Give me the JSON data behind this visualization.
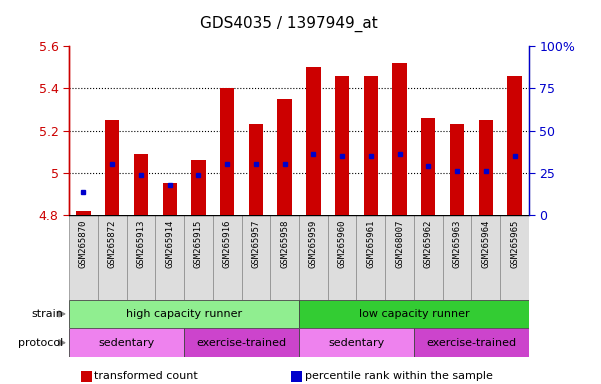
{
  "title": "GDS4035 / 1397949_at",
  "samples": [
    "GSM265870",
    "GSM265872",
    "GSM265913",
    "GSM265914",
    "GSM265915",
    "GSM265916",
    "GSM265957",
    "GSM265958",
    "GSM265959",
    "GSM265960",
    "GSM265961",
    "GSM268007",
    "GSM265962",
    "GSM265963",
    "GSM265964",
    "GSM265965"
  ],
  "bar_values": [
    4.82,
    5.25,
    5.09,
    4.95,
    5.06,
    5.4,
    5.23,
    5.35,
    5.5,
    5.46,
    5.46,
    5.52,
    5.26,
    5.23,
    5.25,
    5.46
  ],
  "percentile_values": [
    4.91,
    5.04,
    4.99,
    4.94,
    4.99,
    5.04,
    5.04,
    5.04,
    5.09,
    5.08,
    5.08,
    5.09,
    5.03,
    5.01,
    5.01,
    5.08
  ],
  "bar_base": 4.8,
  "ylim_min": 4.8,
  "ylim_max": 5.6,
  "yticks": [
    4.8,
    5.0,
    5.2,
    5.4,
    5.6
  ],
  "ytick_labels": [
    "4.8",
    "5",
    "5.2",
    "5.4",
    "5.6"
  ],
  "y2ticks_pct": [
    0,
    25,
    50,
    75,
    100
  ],
  "y2tick_labels": [
    "0",
    "25",
    "50",
    "75",
    "100%"
  ],
  "bar_color": "#CC0000",
  "dot_color": "#0000CC",
  "grid_color": "#000000",
  "tick_color_left": "#CC0000",
  "tick_color_right": "#0000CC",
  "strain_groups": [
    {
      "label": "high capacity runner",
      "start": 0,
      "end": 8,
      "color": "#90EE90"
    },
    {
      "label": "low capacity runner",
      "start": 8,
      "end": 16,
      "color": "#33CC33"
    }
  ],
  "protocol_groups": [
    {
      "label": "sedentary",
      "start": 0,
      "end": 4,
      "color": "#EE82EE"
    },
    {
      "label": "exercise-trained",
      "start": 4,
      "end": 8,
      "color": "#CC44CC"
    },
    {
      "label": "sedentary",
      "start": 8,
      "end": 12,
      "color": "#EE82EE"
    },
    {
      "label": "exercise-trained",
      "start": 12,
      "end": 16,
      "color": "#CC44CC"
    }
  ],
  "legend_items": [
    {
      "color": "#CC0000",
      "label": "transformed count"
    },
    {
      "color": "#0000CC",
      "label": "percentile rank within the sample"
    }
  ],
  "bg_color": "#FFFFFF"
}
